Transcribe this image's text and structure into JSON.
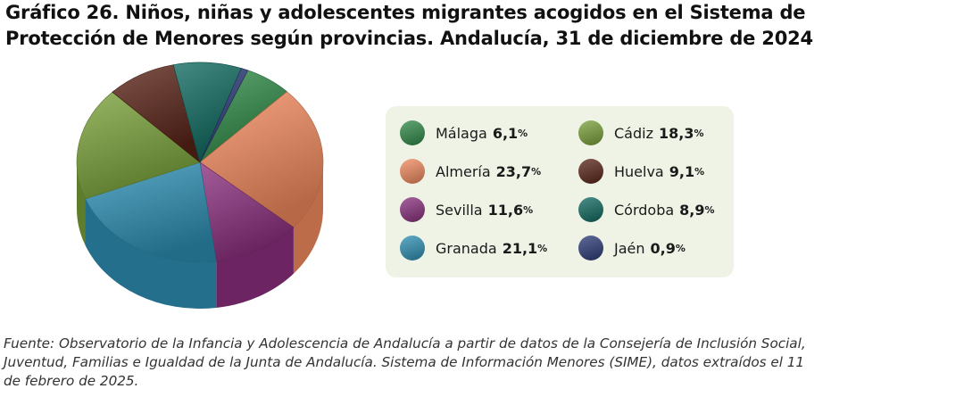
{
  "title": {
    "line1": "Gráfico 26. Niños, niñas y adolescentes migrantes acogidos en el Sistema de",
    "line2": "Protección de Menores según provincias. Andalucía, 31 de diciembre de 2024"
  },
  "chart_data": {
    "type": "pie",
    "title": "Gráfico 26. Niños, niñas y adolescentes migrantes acogidos en el Sistema de Protección de Menores según provincias. Andalucía, 31 de diciembre de 2024",
    "unit": "%",
    "slices": [
      {
        "key": "malaga",
        "label": "Málaga",
        "display": "6,1",
        "value": 6.1,
        "color": "#2f8a47"
      },
      {
        "key": "almeria",
        "label": "Almería",
        "display": "23,7",
        "value": 23.7,
        "color": "#f28a5e"
      },
      {
        "key": "sevilla",
        "label": "Sevilla",
        "display": "11,6",
        "value": 11.6,
        "color": "#8a2f7e"
      },
      {
        "key": "granada",
        "label": "Granada",
        "display": "21,1",
        "value": 21.1,
        "color": "#2e90b4"
      },
      {
        "key": "cadiz",
        "label": "Cádiz",
        "display": "18,3",
        "value": 18.3,
        "color": "#7aa23a"
      },
      {
        "key": "huelva",
        "label": "Huelva",
        "display": "9,1",
        "value": 9.1,
        "color": "#5a2418"
      },
      {
        "key": "cordoba",
        "label": "Córdoba",
        "display": "8,9",
        "value": 8.9,
        "color": "#106a60"
      },
      {
        "key": "jaen",
        "label": "Jaén",
        "display": "0,9",
        "value": 0.9,
        "color": "#2c3a78"
      }
    ],
    "legend_order": [
      "malaga",
      "almeria",
      "sevilla",
      "granada",
      "cadiz",
      "huelva",
      "cordoba",
      "jaen"
    ],
    "legend_position": "right"
  },
  "source": {
    "line1": "Fuente: Observatorio de la Infancia y Adolescencia de Andalucía a partir de datos de la Consejería de Inclusión Social,",
    "line2": "Juventud, Familias e Igualdad de la Junta de Andalucía. Sistema de Información Menores (SIME), datos extraídos el 11",
    "line3": "de febrero de 2025."
  }
}
